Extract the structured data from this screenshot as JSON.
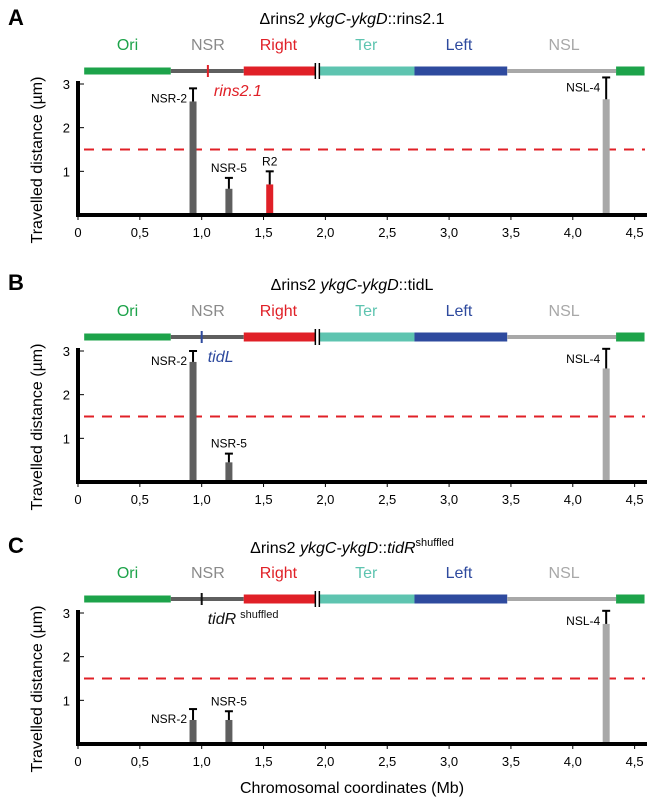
{
  "colors": {
    "Ori": "#1da34a",
    "NSR": "#5f5f5f",
    "Right": "#e02027",
    "Ter": "#5ec4b0",
    "Left": "#2e4a9e",
    "NSL": "#a8a8a8",
    "threshold_line": "#e02027",
    "axis": "#000000"
  },
  "common": {
    "ylabel": "Travelled distance (µm)",
    "xlabel": "Chromosomal coordinates (Mb)",
    "x_tick_labels": [
      "0",
      "0,5",
      "1,0",
      "1,5",
      "2,0",
      "2,5",
      "3,0",
      "3,5",
      "4,0",
      "4,5"
    ],
    "y_tick_labels": [
      "1",
      "2",
      "3"
    ],
    "region_labels": [
      "Ori",
      "NSR",
      "Right",
      "Ter",
      "Left",
      "NSL"
    ]
  },
  "chart_data": [
    {
      "type": "bar",
      "panel": "A",
      "title_prefix": "Δrins2 ",
      "title_italic": "ykgC-ykgD",
      "title_suffix": "::rins2.1",
      "title_superscript": "",
      "insert_label": "rins2.1",
      "insert_label_superscript": "",
      "insert_position_mb": 1.05,
      "insert_color": "#e02027",
      "threshold": 1.5,
      "xlim": [
        0,
        4.6
      ],
      "ylim": [
        0,
        3
      ],
      "xlabel": "",
      "bars": [
        {
          "label": "NSR-2",
          "x": 0.93,
          "value": 2.6,
          "error": 0.3,
          "color": "#5f5f5f"
        },
        {
          "label": "NSR-5",
          "x": 1.22,
          "value": 0.6,
          "error": 0.25,
          "color": "#5f5f5f"
        },
        {
          "label": "R2",
          "x": 1.55,
          "value": 0.7,
          "error": 0.3,
          "color": "#e02027"
        },
        {
          "label": "NSL-4",
          "x": 4.27,
          "value": 2.65,
          "error": 0.5,
          "color": "#a8a8a8"
        }
      ]
    },
    {
      "type": "bar",
      "panel": "B",
      "title_prefix": "Δrins2 ",
      "title_italic": "ykgC-ykgD",
      "title_suffix": "::tidL",
      "title_superscript": "",
      "insert_label": "tidL",
      "insert_label_superscript": "",
      "insert_position_mb": 1.0,
      "insert_color": "#2e4a9e",
      "threshold": 1.5,
      "xlim": [
        0,
        4.6
      ],
      "ylim": [
        0,
        3
      ],
      "xlabel": "",
      "bars": [
        {
          "label": "NSR-2",
          "x": 0.93,
          "value": 2.75,
          "error": 0.25,
          "color": "#5f5f5f"
        },
        {
          "label": "NSR-5",
          "x": 1.22,
          "value": 0.45,
          "error": 0.2,
          "color": "#5f5f5f"
        },
        {
          "label": "NSL-4",
          "x": 4.27,
          "value": 2.6,
          "error": 0.45,
          "color": "#a8a8a8"
        }
      ]
    },
    {
      "type": "bar",
      "panel": "C",
      "title_prefix": "Δrins2 ",
      "title_italic": "ykgC-ykgD",
      "title_suffix": "::",
      "title_italic2": "tidR",
      "title_superscript": "shuffled",
      "insert_label": "tidR",
      "insert_label_superscript": "shuffled",
      "insert_position_mb": 1.0,
      "insert_color": "#111111",
      "threshold": 1.5,
      "xlim": [
        0,
        4.6
      ],
      "ylim": [
        0,
        3
      ],
      "xlabel": "Chromosomal coordinates (Mb)",
      "bars": [
        {
          "label": "NSR-2",
          "x": 0.93,
          "value": 0.55,
          "error": 0.25,
          "color": "#5f5f5f"
        },
        {
          "label": "NSR-5",
          "x": 1.22,
          "value": 0.55,
          "error": 0.2,
          "color": "#5f5f5f"
        },
        {
          "label": "NSL-4",
          "x": 4.27,
          "value": 2.75,
          "error": 0.3,
          "color": "#a8a8a8"
        }
      ]
    }
  ]
}
